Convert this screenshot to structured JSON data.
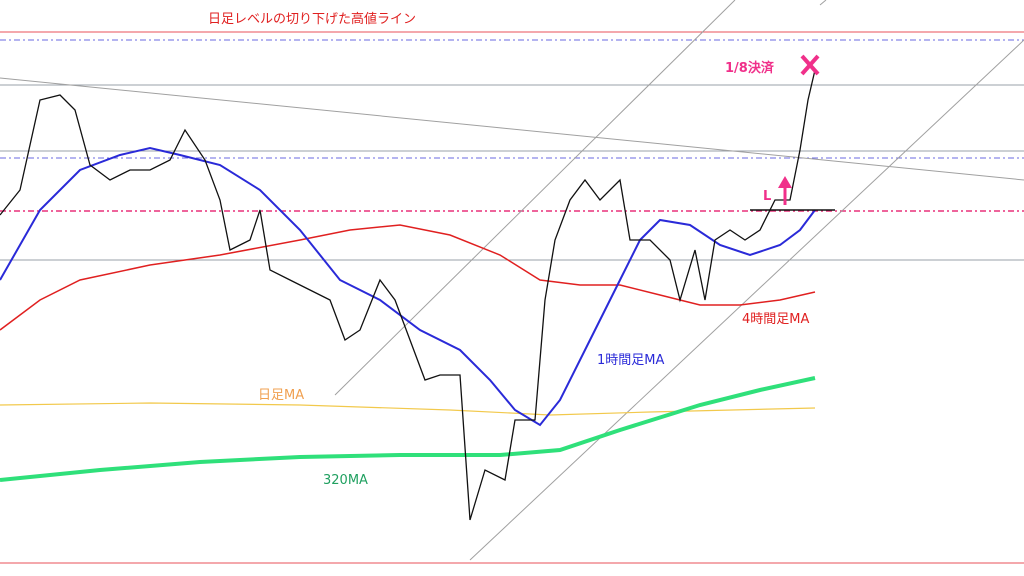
{
  "title": "日足レベルの切り下げた高値ライン",
  "annotations": {
    "exit": "1/8決済",
    "entry": "L",
    "ma_4h": "4時間足MA",
    "ma_1h": "1時間足MA",
    "ma_daily": "日足MA",
    "ma_320": "320MA"
  }
}
